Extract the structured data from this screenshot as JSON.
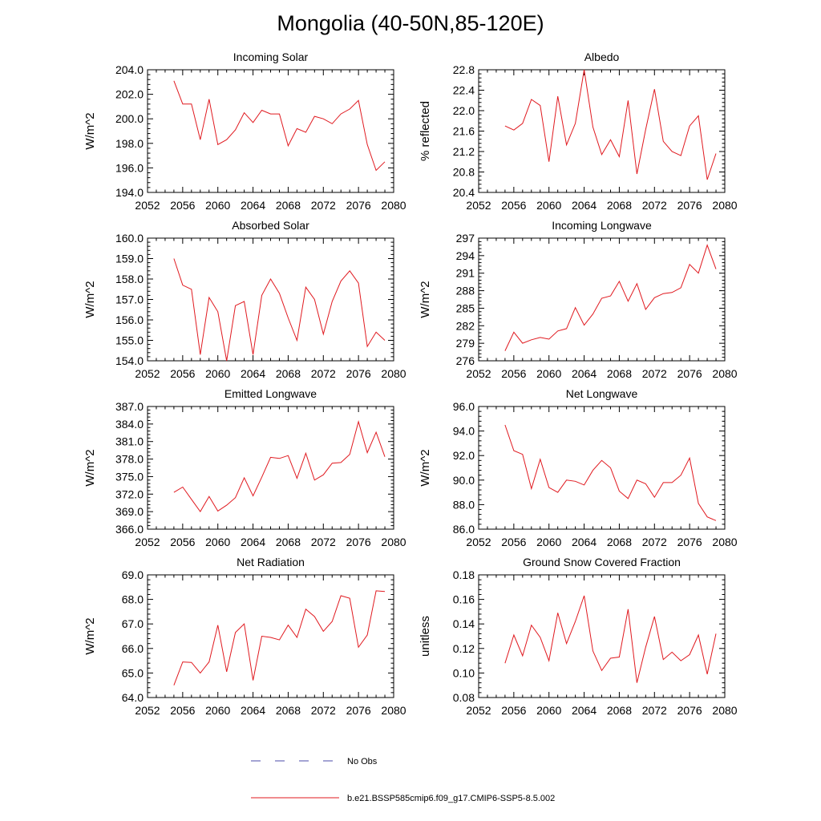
{
  "title": "Mongolia (40-50N,85-120E)",
  "legend": [
    {
      "label": "No Obs",
      "color": "#4a4aa8",
      "dash": true
    },
    {
      "label": "b.e21.BSSP585cmip6.f09_g17.CMIP6-SSP5-8.5.002",
      "color": "#e0191f",
      "dash": false
    }
  ],
  "chart_data": [
    {
      "type": "line",
      "title": "Incoming Solar",
      "ylabel": "W/m^2",
      "xlim": [
        2052,
        2080
      ],
      "ylim": [
        194,
        204
      ],
      "xticks": [
        "2052",
        "2056",
        "2060",
        "2064",
        "2068",
        "2072",
        "2076",
        "2080"
      ],
      "yticks": [
        "194.0",
        "196.0",
        "198.0",
        "200.0",
        "202.0",
        "204.0"
      ],
      "x": [
        2055,
        2056,
        2057,
        2058,
        2059,
        2060,
        2061,
        2062,
        2063,
        2064,
        2065,
        2066,
        2067,
        2068,
        2069,
        2070,
        2071,
        2072,
        2073,
        2074,
        2075,
        2076,
        2077,
        2078,
        2079
      ],
      "series": [
        {
          "name": "b.e21.BSSP585cmip6.f09_g17.CMIP6-SSP5-8.5.002",
          "color": "#e0191f",
          "values": [
            203.1,
            201.2,
            201.2,
            198.3,
            201.6,
            197.9,
            198.3,
            199.1,
            200.5,
            199.7,
            200.7,
            200.4,
            200.4,
            197.8,
            199.2,
            198.9,
            200.2,
            200.0,
            199.6,
            200.4,
            200.8,
            201.5,
            197.9,
            195.8,
            196.5
          ]
        }
      ]
    },
    {
      "type": "line",
      "title": "Albedo",
      "ylabel": "% reflected",
      "xlim": [
        2052,
        2080
      ],
      "ylim": [
        20.4,
        22.8
      ],
      "xticks": [
        "2052",
        "2056",
        "2060",
        "2064",
        "2068",
        "2072",
        "2076",
        "2080"
      ],
      "yticks": [
        "20.4",
        "20.8",
        "21.2",
        "21.6",
        "22.0",
        "22.4",
        "22.8"
      ],
      "x": [
        2055,
        2056,
        2057,
        2058,
        2059,
        2060,
        2061,
        2062,
        2063,
        2064,
        2065,
        2066,
        2067,
        2068,
        2069,
        2070,
        2071,
        2072,
        2073,
        2074,
        2075,
        2076,
        2077,
        2078,
        2079
      ],
      "series": [
        {
          "name": "b.e21.BSSP585cmip6.f09_g17.CMIP6-SSP5-8.5.002",
          "color": "#e0191f",
          "values": [
            21.7,
            21.62,
            21.75,
            22.22,
            22.1,
            21.0,
            22.28,
            21.33,
            21.75,
            22.8,
            21.68,
            21.14,
            21.43,
            21.1,
            22.2,
            20.76,
            21.63,
            22.42,
            21.4,
            21.2,
            21.12,
            21.7,
            21.9,
            20.65,
            21.16
          ]
        }
      ]
    },
    {
      "type": "line",
      "title": "Absorbed Solar",
      "ylabel": "W/m^2",
      "xlim": [
        2052,
        2080
      ],
      "ylim": [
        154,
        160
      ],
      "xticks": [
        "2052",
        "2056",
        "2060",
        "2064",
        "2068",
        "2072",
        "2076",
        "2080"
      ],
      "yticks": [
        "154.0",
        "155.0",
        "156.0",
        "157.0",
        "158.0",
        "159.0",
        "160.0"
      ],
      "x": [
        2055,
        2056,
        2057,
        2058,
        2059,
        2060,
        2061,
        2062,
        2063,
        2064,
        2065,
        2066,
        2067,
        2068,
        2069,
        2070,
        2071,
        2072,
        2073,
        2074,
        2075,
        2076,
        2077,
        2078,
        2079
      ],
      "series": [
        {
          "name": "b.e21.BSSP585cmip6.f09_g17.CMIP6-SSP5-8.5.002",
          "color": "#e0191f",
          "values": [
            159.0,
            157.7,
            157.5,
            154.3,
            157.1,
            156.4,
            154.0,
            156.7,
            156.9,
            154.3,
            157.2,
            158.0,
            157.3,
            156.1,
            155.0,
            157.6,
            157.0,
            155.3,
            156.9,
            157.9,
            158.4,
            157.8,
            154.7,
            155.4,
            155.0
          ]
        }
      ]
    },
    {
      "type": "line",
      "title": "Incoming Longwave",
      "ylabel": "W/m^2",
      "xlim": [
        2052,
        2080
      ],
      "ylim": [
        276,
        297
      ],
      "xticks": [
        "2052",
        "2056",
        "2060",
        "2064",
        "2068",
        "2072",
        "2076",
        "2080"
      ],
      "yticks": [
        "276",
        "279",
        "282",
        "285",
        "288",
        "291",
        "294",
        "297"
      ],
      "x": [
        2055,
        2056,
        2057,
        2058,
        2059,
        2060,
        2061,
        2062,
        2063,
        2064,
        2065,
        2066,
        2067,
        2068,
        2069,
        2070,
        2071,
        2072,
        2073,
        2074,
        2075,
        2076,
        2077,
        2078,
        2079
      ],
      "series": [
        {
          "name": "b.e21.BSSP585cmip6.f09_g17.CMIP6-SSP5-8.5.002",
          "color": "#e0191f",
          "values": [
            277.7,
            280.9,
            279.0,
            279.6,
            280.0,
            279.7,
            281.1,
            281.5,
            285.1,
            282.1,
            284.0,
            286.7,
            287.1,
            289.6,
            286.2,
            289.2,
            284.8,
            286.8,
            287.5,
            287.7,
            288.5,
            292.5,
            291.0,
            295.8,
            291.7
          ]
        }
      ]
    },
    {
      "type": "line",
      "title": "Emitted Longwave",
      "ylabel": "W/m^2",
      "xlim": [
        2052,
        2080
      ],
      "ylim": [
        366,
        387
      ],
      "xticks": [
        "2052",
        "2056",
        "2060",
        "2064",
        "2068",
        "2072",
        "2076",
        "2080"
      ],
      "yticks": [
        "366.0",
        "369.0",
        "372.0",
        "375.0",
        "378.0",
        "381.0",
        "384.0",
        "387.0"
      ],
      "x": [
        2055,
        2056,
        2057,
        2058,
        2059,
        2060,
        2061,
        2062,
        2063,
        2064,
        2065,
        2066,
        2067,
        2068,
        2069,
        2070,
        2071,
        2072,
        2073,
        2074,
        2075,
        2076,
        2077,
        2078,
        2079
      ],
      "series": [
        {
          "name": "b.e21.BSSP585cmip6.f09_g17.CMIP6-SSP5-8.5.002",
          "color": "#e0191f",
          "values": [
            372.3,
            373.2,
            371.1,
            369.0,
            371.6,
            369.1,
            370.1,
            371.4,
            374.8,
            371.7,
            374.9,
            378.3,
            378.1,
            378.6,
            374.7,
            379.0,
            374.4,
            375.3,
            377.3,
            377.4,
            378.8,
            384.4,
            379.1,
            382.6,
            378.4
          ]
        }
      ]
    },
    {
      "type": "line",
      "title": "Net Longwave",
      "ylabel": "W/m^2",
      "xlim": [
        2052,
        2080
      ],
      "ylim": [
        86,
        96
      ],
      "xticks": [
        "2052",
        "2056",
        "2060",
        "2064",
        "2068",
        "2072",
        "2076",
        "2080"
      ],
      "yticks": [
        "86.0",
        "88.0",
        "90.0",
        "92.0",
        "94.0",
        "96.0"
      ],
      "x": [
        2055,
        2056,
        2057,
        2058,
        2059,
        2060,
        2061,
        2062,
        2063,
        2064,
        2065,
        2066,
        2067,
        2068,
        2069,
        2070,
        2071,
        2072,
        2073,
        2074,
        2075,
        2076,
        2077,
        2078,
        2079
      ],
      "series": [
        {
          "name": "b.e21.BSSP585cmip6.f09_g17.CMIP6-SSP5-8.5.002",
          "color": "#e0191f",
          "values": [
            94.5,
            92.4,
            92.1,
            89.3,
            91.7,
            89.4,
            89.0,
            90.0,
            89.9,
            89.6,
            90.8,
            91.6,
            91.0,
            89.1,
            88.5,
            90.0,
            89.7,
            88.6,
            89.8,
            89.8,
            90.4,
            91.8,
            88.1,
            87.0,
            86.7
          ]
        }
      ]
    },
    {
      "type": "line",
      "title": "Net Radiation",
      "ylabel": "W/m^2",
      "xlim": [
        2052,
        2080
      ],
      "ylim": [
        64,
        69
      ],
      "xticks": [
        "2052",
        "2056",
        "2060",
        "2064",
        "2068",
        "2072",
        "2076",
        "2080"
      ],
      "yticks": [
        "64.0",
        "65.0",
        "66.0",
        "67.0",
        "68.0",
        "69.0"
      ],
      "x": [
        2055,
        2056,
        2057,
        2058,
        2059,
        2060,
        2061,
        2062,
        2063,
        2064,
        2065,
        2066,
        2067,
        2068,
        2069,
        2070,
        2071,
        2072,
        2073,
        2074,
        2075,
        2076,
        2077,
        2078,
        2079
      ],
      "series": [
        {
          "name": "b.e21.BSSP585cmip6.f09_g17.CMIP6-SSP5-8.5.002",
          "color": "#e0191f",
          "values": [
            64.5,
            65.45,
            65.43,
            65.0,
            65.45,
            66.95,
            65.05,
            66.65,
            67.0,
            64.7,
            66.5,
            66.45,
            66.35,
            66.95,
            66.45,
            67.6,
            67.3,
            66.7,
            67.1,
            68.15,
            68.05,
            66.05,
            66.55,
            68.35,
            68.32
          ]
        }
      ]
    },
    {
      "type": "line",
      "title": "Ground Snow Covered Fraction",
      "ylabel": "unitless",
      "xlim": [
        2052,
        2080
      ],
      "ylim": [
        0.08,
        0.18
      ],
      "xticks": [
        "2052",
        "2056",
        "2060",
        "2064",
        "2068",
        "2072",
        "2076",
        "2080"
      ],
      "yticks": [
        "0.08",
        "0.10",
        "0.12",
        "0.14",
        "0.16",
        "0.18"
      ],
      "x": [
        2055,
        2056,
        2057,
        2058,
        2059,
        2060,
        2061,
        2062,
        2063,
        2064,
        2065,
        2066,
        2067,
        2068,
        2069,
        2070,
        2071,
        2072,
        2073,
        2074,
        2075,
        2076,
        2077,
        2078,
        2079
      ],
      "series": [
        {
          "name": "b.e21.BSSP585cmip6.f09_g17.CMIP6-SSP5-8.5.002",
          "color": "#e0191f",
          "values": [
            0.108,
            0.131,
            0.114,
            0.139,
            0.129,
            0.11,
            0.149,
            0.124,
            0.142,
            0.163,
            0.118,
            0.102,
            0.112,
            0.113,
            0.152,
            0.092,
            0.121,
            0.146,
            0.111,
            0.117,
            0.11,
            0.115,
            0.131,
            0.099,
            0.132
          ]
        }
      ]
    }
  ]
}
